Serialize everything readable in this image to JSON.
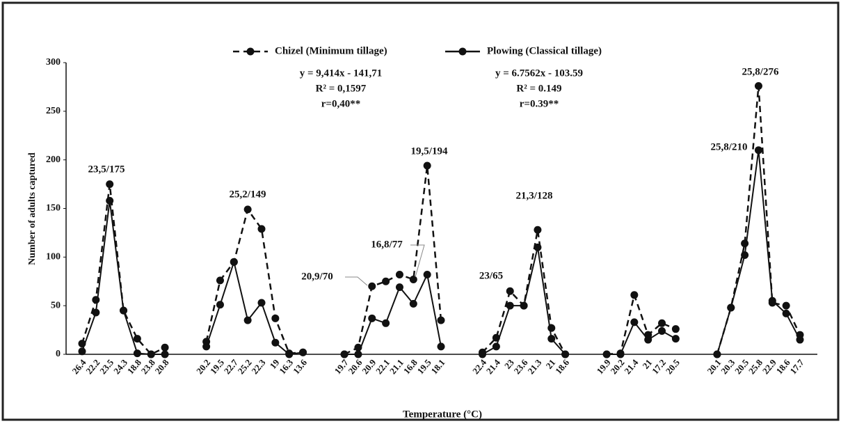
{
  "chart_data": {
    "type": "line",
    "y_label": "Number of adults captured",
    "x_label": "Temperature (°C)",
    "categories": [
      "26.4",
      "22.2",
      "23.5",
      "24.3",
      "18.8",
      "23.8",
      "20.8",
      null,
      null,
      "20.2",
      "19.5",
      "22.7",
      "25.2",
      "22.3",
      "19",
      "16.3",
      "13.6",
      null,
      null,
      "19.7",
      "20.6",
      "20.9",
      "22.1",
      "21.1",
      "16.8",
      "19.5",
      "18.1",
      null,
      null,
      "22.4",
      "21.4",
      "23",
      "23.6",
      "21.3",
      "21",
      "18.6",
      null,
      null,
      "19.9",
      "20.2",
      "21.4",
      "21",
      "17.2",
      "20.5",
      null,
      null,
      "20.1",
      "20.3",
      "20.5",
      "25.8",
      "22.9",
      "18.6",
      "17.7"
    ],
    "series": [
      {
        "name": "Chizel (Minimum tillage)",
        "color": "#111111",
        "dash": true,
        "values": [
          11,
          56,
          175,
          45,
          16,
          0,
          7,
          null,
          null,
          13,
          76,
          95,
          149,
          129,
          37,
          1,
          2,
          null,
          null,
          0,
          7,
          70,
          75,
          82,
          77,
          194,
          35,
          null,
          null,
          2,
          17,
          65,
          50,
          128,
          27,
          0,
          null,
          null,
          0,
          1,
          61,
          20,
          32,
          26,
          null,
          null,
          0,
          48,
          114,
          276,
          53,
          50,
          20
        ]
      },
      {
        "name": "Plowing (Classical tillage)",
        "color": "#111111",
        "dash": false,
        "values": [
          3,
          43,
          158,
          45,
          1,
          0,
          0,
          null,
          null,
          8,
          51,
          95,
          35,
          53,
          12,
          0,
          2,
          null,
          null,
          0,
          0,
          37,
          32,
          69,
          52,
          82,
          8,
          null,
          null,
          0,
          8,
          50,
          50,
          110,
          16,
          0,
          null,
          null,
          0,
          0,
          33,
          15,
          24,
          16,
          null,
          null,
          0,
          48,
          102,
          210,
          55,
          42,
          15
        ]
      }
    ],
    "ylim": [
      0,
      300
    ],
    "yticks": [
      0,
      50,
      100,
      150,
      200,
      250,
      300
    ],
    "grid": false,
    "legend": "top",
    "annotations": [
      "23,5/175",
      "25,2/149",
      "19,5/194",
      "16,8/77",
      "20,9/70",
      "21,3/128",
      "23/65",
      "25,8/276",
      "25,8/210"
    ],
    "equations": [
      [
        "y = 9,414x - 141,71",
        "R² = 0,1597",
        "r=0,40**"
      ],
      [
        "y = 6.7562x - 103.59",
        "R² = 0.149",
        "r=0.39**"
      ]
    ]
  }
}
